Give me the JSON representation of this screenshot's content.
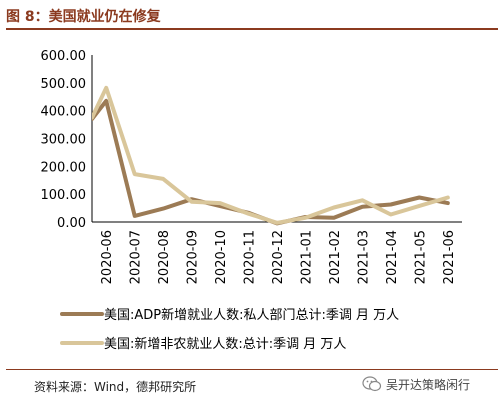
{
  "header": {
    "title": "图 8：美国就业仍在修复"
  },
  "footer": {
    "source": "资料来源：Wind，德邦研究所"
  },
  "watermark": {
    "text": "吴开达策略闲行"
  },
  "chart_data": {
    "type": "line",
    "categories": [
      "2020-06",
      "2020-07",
      "2020-08",
      "2020-09",
      "2020-10",
      "2020-11",
      "2020-12",
      "2021-01",
      "2021-02",
      "2021-03",
      "2021-04",
      "2021-05",
      "2021-06"
    ],
    "y_ticks": [
      "0.00",
      "100.00",
      "200.00",
      "300.00",
      "400.00",
      "500.00",
      "600.00"
    ],
    "ylim": [
      0,
      600
    ],
    "grid": false,
    "legend_position": "bottom",
    "series": [
      {
        "name": "美国:ADP新增就业人数:私人部门总计:季调 月 万人",
        "color": "#9c7b55",
        "x": [
          -0.5,
          0,
          1,
          2,
          3,
          4,
          5,
          6,
          7,
          8,
          9,
          10,
          11,
          12
        ],
        "values": [
          370,
          435,
          22,
          48,
          82,
          57,
          33,
          -5,
          18,
          15,
          55,
          63,
          88,
          68
        ]
      },
      {
        "name": "美国:新增非农就业人数:总计:季调 月 万人",
        "color": "#d9c69a",
        "x": [
          -0.5,
          0,
          1,
          2,
          3,
          4,
          5,
          6,
          7,
          8,
          9,
          10,
          11,
          12
        ],
        "values": [
          375,
          482,
          172,
          155,
          73,
          68,
          30,
          -3,
          15,
          52,
          78,
          27,
          58,
          88
        ]
      }
    ]
  }
}
